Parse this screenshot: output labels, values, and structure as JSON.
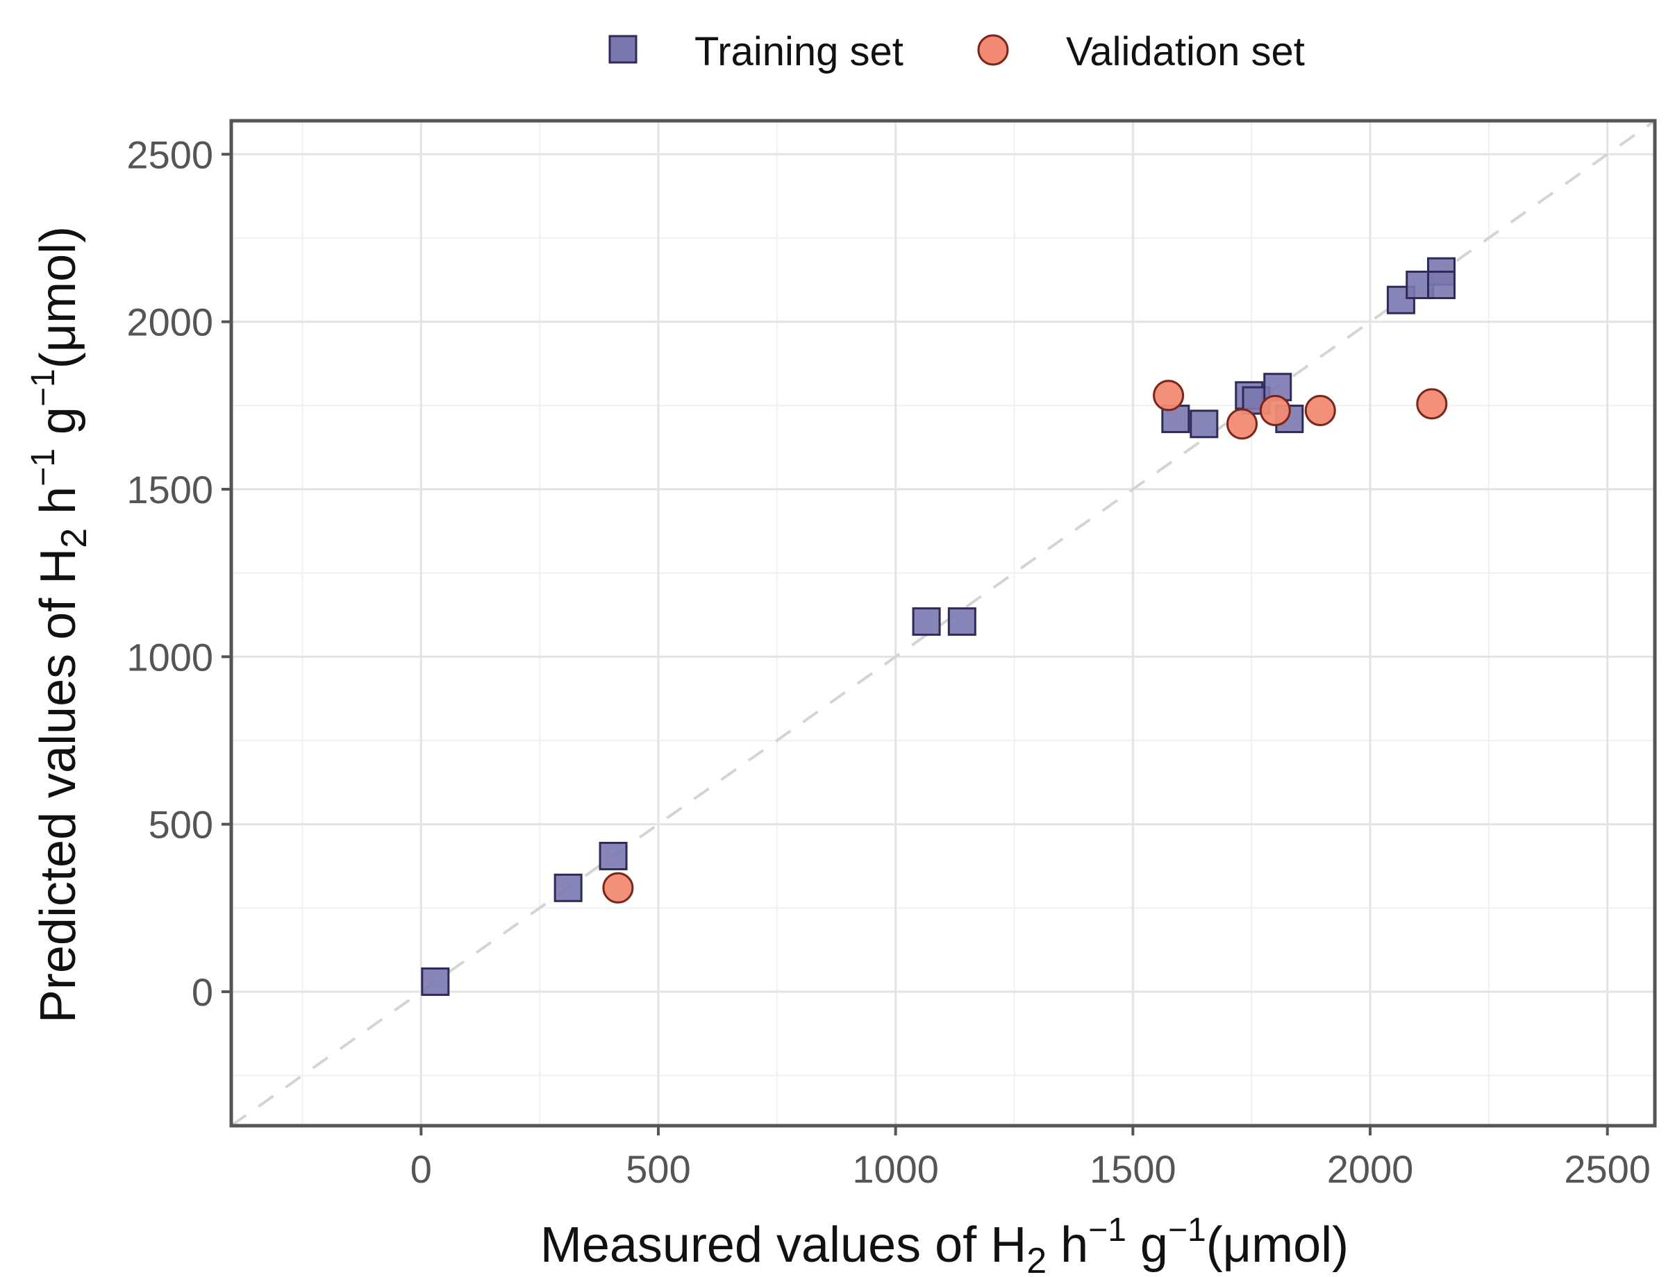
{
  "chart_data": {
    "type": "scatter",
    "title": "",
    "xlabel_parts": {
      "prefix": "Measured values of H",
      "sub": "2",
      "mid1": " h",
      "sup1": "−1",
      "mid2": " g",
      "sup2": "−1",
      "suffix": "(μmol)"
    },
    "ylabel_parts": {
      "prefix": "Predicted values of H",
      "sub": "2",
      "mid1": " h",
      "sup1": "−1",
      "mid2": " g",
      "sup2": "−1",
      "suffix": "(μmol)"
    },
    "xlim": [
      -400,
      2600
    ],
    "ylim": [
      -400,
      2600
    ],
    "xticks": [
      0,
      500,
      1000,
      1500,
      2000,
      2500
    ],
    "yticks": [
      0,
      500,
      1000,
      1500,
      2000,
      2500
    ],
    "xtick_labels": [
      "0",
      "500",
      "1000",
      "1500",
      "2000",
      "2500"
    ],
    "ytick_labels": [
      "0",
      "500",
      "1000",
      "1500",
      "2000",
      "2500"
    ],
    "grid": true,
    "reference_line": "y = x (dashed)",
    "legend_position": "top",
    "series": [
      {
        "name": "Training set",
        "marker": "square",
        "color": "#7b78b0",
        "edge_color": "#2e2b5a",
        "points": [
          {
            "x": 30,
            "y": 30
          },
          {
            "x": 310,
            "y": 310
          },
          {
            "x": 405,
            "y": 405
          },
          {
            "x": 1065,
            "y": 1105
          },
          {
            "x": 1140,
            "y": 1105
          },
          {
            "x": 1590,
            "y": 1710
          },
          {
            "x": 1650,
            "y": 1695
          },
          {
            "x": 1745,
            "y": 1780
          },
          {
            "x": 1760,
            "y": 1765
          },
          {
            "x": 1805,
            "y": 1805
          },
          {
            "x": 1830,
            "y": 1710
          },
          {
            "x": 2065,
            "y": 2065
          },
          {
            "x": 2105,
            "y": 2110
          },
          {
            "x": 2150,
            "y": 2150
          },
          {
            "x": 2150,
            "y": 2110
          }
        ]
      },
      {
        "name": "Validation set",
        "marker": "circle",
        "color": "#f28a73",
        "edge_color": "#7a2618",
        "points": [
          {
            "x": 415,
            "y": 310
          },
          {
            "x": 1575,
            "y": 1780
          },
          {
            "x": 1730,
            "y": 1695
          },
          {
            "x": 1800,
            "y": 1735
          },
          {
            "x": 1895,
            "y": 1735
          },
          {
            "x": 2130,
            "y": 1755
          }
        ]
      }
    ]
  }
}
